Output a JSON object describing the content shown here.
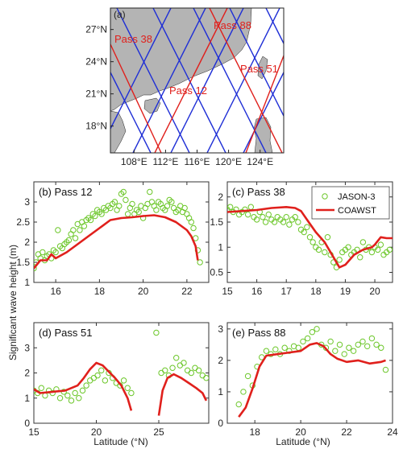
{
  "figure": {
    "ylabel": "Significant wave height (m)",
    "xlabel": "Latitude (°N)"
  },
  "colors": {
    "land": "#b4b4b4",
    "blue_track": "#1f2fd6",
    "red_track": "#e0201c",
    "jason_marker": "#6cc72a",
    "coawst_line": "#e0201c",
    "axis": "#333333"
  },
  "chart_data": [
    {
      "type": "map",
      "panel_label": "(a)",
      "lon_ticks": [
        "108°E",
        "112°E",
        "116°E",
        "120°E",
        "124°E"
      ],
      "lat_ticks": [
        "27°N",
        "24°N",
        "21°N",
        "18°N"
      ],
      "lon_range": [
        105,
        127
      ],
      "lat_range": [
        15.5,
        29
      ],
      "pass_labels": [
        "Pass 38",
        "Pass 88",
        "Pass 12",
        "Pass 51"
      ],
      "highlighted_passes": [
        "12",
        "38",
        "51",
        "88"
      ]
    },
    {
      "type": "scatter",
      "panel_label": "(b) Pass 12",
      "xlim": [
        15,
        23
      ],
      "ylim": [
        1,
        3.5
      ],
      "xticks": [
        16,
        18,
        20,
        22
      ],
      "yticks": [
        1,
        1.5,
        2,
        2.5,
        3
      ],
      "series": [
        {
          "name": "",
          "kind": "points",
          "x": [
            15.0,
            15.1,
            15.2,
            15.3,
            15.4,
            15.5,
            15.6,
            15.7,
            15.8,
            15.9,
            16.0,
            16.1,
            16.2,
            16.3,
            16.4,
            16.5,
            16.6,
            16.7,
            16.8,
            16.9,
            17.0,
            17.1,
            17.2,
            17.3,
            17.4,
            17.5,
            17.6,
            17.7,
            17.8,
            17.9,
            18.0,
            18.1,
            18.2,
            18.3,
            18.4,
            18.5,
            18.6,
            18.7,
            18.8,
            18.9,
            19.0,
            19.1,
            19.2,
            19.3,
            19.4,
            19.5,
            19.6,
            19.7,
            19.8,
            19.9,
            20.0,
            20.1,
            20.2,
            20.3,
            20.4,
            20.5,
            20.6,
            20.7,
            20.8,
            20.9,
            21.0,
            21.1,
            21.2,
            21.3,
            21.4,
            21.5,
            21.6,
            21.7,
            21.8,
            21.9,
            22.0,
            22.1,
            22.2,
            22.3,
            22.4,
            22.5,
            22.6
          ],
          "y": [
            1.35,
            1.5,
            1.7,
            1.6,
            1.75,
            1.55,
            1.65,
            1.7,
            1.6,
            1.8,
            1.75,
            2.3,
            1.9,
            1.85,
            1.95,
            2.0,
            2.05,
            2.2,
            2.3,
            2.1,
            2.45,
            2.3,
            2.5,
            2.4,
            2.55,
            2.6,
            2.55,
            2.7,
            2.65,
            2.8,
            2.75,
            2.7,
            2.85,
            2.8,
            2.9,
            2.85,
            2.95,
            3.0,
            2.8,
            2.9,
            3.2,
            3.25,
            3.05,
            2.7,
            2.85,
            2.95,
            2.7,
            2.8,
            2.75,
            2.9,
            2.6,
            2.85,
            2.95,
            3.25,
            3.0,
            2.9,
            2.8,
            3.0,
            2.95,
            2.85,
            2.8,
            2.9,
            3.05,
            3.0,
            2.85,
            2.75,
            2.8,
            2.9,
            2.75,
            2.85,
            2.7,
            2.6,
            2.5,
            2.35,
            2.1,
            1.8,
            1.5
          ]
        },
        {
          "name": "",
          "kind": "line",
          "x": [
            15.0,
            15.3,
            15.6,
            15.8,
            16.0,
            16.5,
            17.0,
            17.5,
            18.0,
            18.5,
            19.0,
            19.5,
            20.0,
            20.5,
            21.0,
            21.5,
            22.0,
            22.2,
            22.4,
            22.5
          ],
          "y": [
            1.35,
            1.55,
            1.55,
            1.7,
            1.6,
            1.75,
            1.95,
            2.15,
            2.35,
            2.55,
            2.6,
            2.62,
            2.65,
            2.67,
            2.62,
            2.5,
            2.3,
            2.15,
            1.9,
            1.55
          ]
        }
      ]
    },
    {
      "type": "scatter",
      "panel_label": "(c) Pass 38",
      "xlim": [
        15,
        20.6
      ],
      "ylim": [
        0.3,
        2.3
      ],
      "xticks": [
        15,
        16,
        17,
        18,
        19,
        20
      ],
      "yticks": [
        0.5,
        1,
        1.5,
        2
      ],
      "legend": {
        "position": "top-right",
        "entries": [
          "JASON-3",
          "COAWST"
        ]
      },
      "series": [
        {
          "name": "JASON-3",
          "kind": "points",
          "x": [
            15.0,
            15.1,
            15.2,
            15.3,
            15.4,
            15.5,
            15.6,
            15.7,
            15.8,
            15.9,
            16.0,
            16.1,
            16.2,
            16.3,
            16.4,
            16.5,
            16.6,
            16.7,
            16.8,
            16.9,
            17.0,
            17.1,
            17.2,
            17.3,
            17.4,
            17.5,
            17.6,
            17.7,
            17.8,
            17.9,
            18.0,
            18.1,
            18.2,
            18.3,
            18.4,
            18.5,
            18.6,
            18.7,
            18.8,
            18.9,
            19.0,
            19.1,
            19.2,
            19.3,
            19.4,
            19.5,
            19.6,
            19.7,
            19.8,
            19.9,
            20.0,
            20.1,
            20.2,
            20.3,
            20.4,
            20.5
          ],
          "y": [
            1.75,
            1.8,
            1.7,
            1.75,
            1.65,
            1.7,
            1.75,
            1.65,
            1.8,
            1.6,
            1.55,
            1.7,
            1.6,
            1.5,
            1.65,
            1.55,
            1.5,
            1.6,
            1.55,
            1.5,
            1.6,
            1.45,
            1.55,
            1.6,
            1.5,
            1.35,
            1.3,
            1.4,
            1.2,
            1.1,
            1.0,
            0.95,
            1.1,
            0.9,
            1.2,
            0.85,
            0.7,
            0.6,
            0.75,
            0.9,
            0.95,
            1.0,
            0.85,
            0.9,
            0.95,
            0.8,
            1.1,
            0.95,
            1.0,
            0.9,
            1.0,
            0.95,
            1.05,
            0.85,
            0.9,
            0.95
          ]
        },
        {
          "name": "COAWST",
          "kind": "line",
          "x": [
            15.0,
            15.5,
            16.0,
            16.5,
            17.0,
            17.3,
            17.5,
            17.7,
            18.0,
            18.3,
            18.6,
            18.8,
            19.0,
            19.3,
            19.6,
            19.9,
            20.0,
            20.2,
            20.4,
            20.6
          ],
          "y": [
            1.7,
            1.72,
            1.74,
            1.78,
            1.8,
            1.78,
            1.72,
            1.55,
            1.3,
            1.1,
            0.8,
            0.6,
            0.65,
            0.85,
            0.95,
            1.0,
            1.05,
            1.2,
            1.18,
            1.18
          ]
        }
      ]
    },
    {
      "type": "scatter",
      "panel_label": "(d) Pass 51",
      "xlim": [
        15,
        29
      ],
      "ylim": [
        0,
        4
      ],
      "xticks": [
        15,
        20,
        25
      ],
      "yticks": [
        0,
        1,
        2,
        3
      ],
      "series": [
        {
          "name": "",
          "kind": "points",
          "x": [
            15.0,
            15.3,
            15.6,
            15.9,
            16.2,
            16.5,
            16.8,
            17.1,
            17.4,
            17.7,
            18.0,
            18.3,
            18.6,
            18.9,
            19.2,
            19.5,
            19.8,
            20.1,
            20.4,
            20.7,
            21.0,
            21.3,
            21.6,
            21.9,
            22.2,
            22.5,
            22.8,
            25.2,
            25.5,
            25.8,
            26.1,
            26.4,
            26.7,
            27.0,
            27.3,
            27.6,
            27.9,
            28.2,
            28.5,
            28.8,
            24.8
          ],
          "y": [
            1.3,
            1.2,
            1.4,
            1.1,
            1.3,
            1.2,
            1.35,
            1.0,
            1.25,
            1.1,
            0.9,
            1.2,
            1.0,
            1.3,
            1.5,
            1.7,
            1.8,
            1.9,
            2.1,
            1.7,
            2.0,
            1.8,
            1.6,
            1.5,
            1.7,
            1.4,
            1.2,
            2.0,
            2.1,
            1.9,
            2.2,
            2.6,
            2.3,
            2.4,
            2.1,
            2.0,
            2.2,
            2.1,
            1.9,
            1.8,
            3.6
          ]
        },
        {
          "name": "",
          "kind": "line",
          "x": [
            15.0,
            15.5,
            16.5,
            17.5,
            18.5,
            19.0,
            19.5,
            20.0,
            20.5,
            21.0,
            21.5,
            22.0,
            22.5,
            22.8
          ],
          "y": [
            1.35,
            1.2,
            1.25,
            1.3,
            1.5,
            1.8,
            2.15,
            2.4,
            2.3,
            2.05,
            1.8,
            1.5,
            1.0,
            0.5
          ]
        },
        {
          "name": "",
          "kind": "line",
          "x": [
            25.0,
            25.3,
            25.7,
            26.2,
            26.8,
            27.4,
            28.0,
            28.5,
            28.8
          ],
          "y": [
            0.3,
            1.3,
            1.8,
            1.95,
            1.8,
            1.6,
            1.4,
            1.2,
            0.9
          ]
        }
      ]
    },
    {
      "type": "scatter",
      "panel_label": "(e) Pass 88",
      "xlim": [
        16.8,
        24
      ],
      "ylim": [
        0,
        3.2
      ],
      "xticks": [
        18,
        20,
        22,
        24
      ],
      "yticks": [
        0,
        1,
        2,
        3
      ],
      "series": [
        {
          "name": "",
          "kind": "points",
          "x": [
            17.3,
            17.5,
            17.7,
            17.9,
            18.1,
            18.3,
            18.5,
            18.7,
            18.9,
            19.1,
            19.3,
            19.5,
            19.7,
            19.9,
            20.1,
            20.3,
            20.5,
            20.7,
            20.9,
            21.1,
            21.3,
            21.5,
            21.7,
            21.9,
            22.1,
            22.3,
            22.5,
            22.7,
            22.9,
            23.1,
            23.3,
            23.5,
            23.7
          ],
          "y": [
            0.6,
            1.0,
            1.5,
            1.2,
            1.8,
            2.1,
            2.3,
            2.2,
            2.35,
            2.2,
            2.4,
            2.3,
            2.45,
            2.4,
            2.6,
            2.7,
            2.9,
            3.0,
            2.5,
            2.4,
            2.6,
            2.3,
            2.5,
            2.2,
            2.4,
            2.3,
            2.5,
            2.6,
            2.45,
            2.7,
            2.5,
            2.4,
            1.7
          ]
        },
        {
          "name": "",
          "kind": "line",
          "x": [
            17.3,
            17.6,
            17.9,
            18.2,
            18.5,
            19.0,
            19.5,
            20.0,
            20.4,
            20.7,
            21.0,
            21.3,
            21.6,
            22.0,
            22.5,
            23.0,
            23.5,
            23.7
          ],
          "y": [
            0.2,
            0.5,
            1.1,
            1.8,
            2.15,
            2.2,
            2.25,
            2.3,
            2.5,
            2.55,
            2.45,
            2.2,
            2.05,
            1.95,
            2.0,
            1.9,
            1.95,
            2.0
          ]
        }
      ]
    }
  ]
}
